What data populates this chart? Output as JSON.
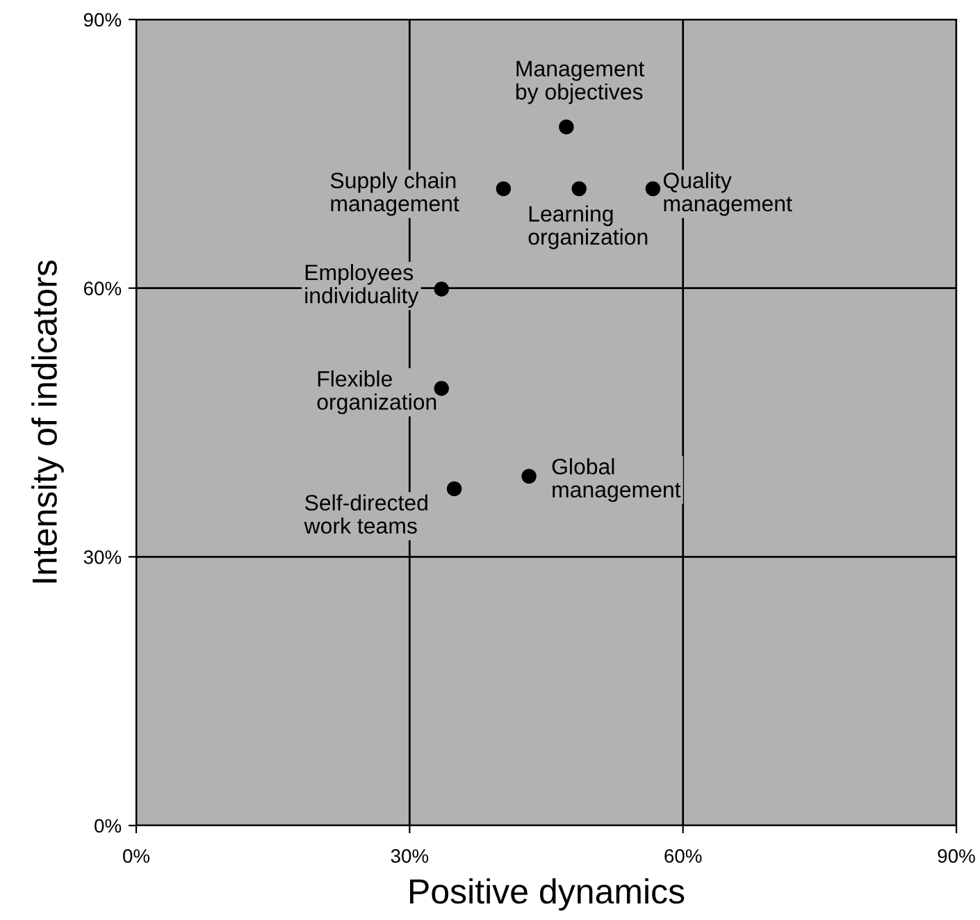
{
  "chart_data": {
    "type": "scatter",
    "xlabel": "Positive dynamics",
    "ylabel": "Intensity of indicators",
    "xlim": [
      0,
      90
    ],
    "ylim": [
      0,
      90
    ],
    "xticks": [
      {
        "value": 0,
        "label": "0%"
      },
      {
        "value": 30,
        "label": "30%"
      },
      {
        "value": 60,
        "label": "60%"
      },
      {
        "value": 90,
        "label": "90%"
      }
    ],
    "yticks": [
      {
        "value": 0,
        "label": "0%"
      },
      {
        "value": 30,
        "label": "30%"
      },
      {
        "value": 60,
        "label": "60%"
      },
      {
        "value": 90,
        "label": "90%"
      }
    ],
    "grid": true,
    "marker": "circle",
    "series": [
      {
        "color": "#000000",
        "x": [
          47.2,
          40.3,
          48.6,
          56.7,
          33.5,
          33.5,
          43.1,
          34.9
        ],
        "values": [
          78.0,
          71.1,
          71.1,
          71.1,
          59.9,
          48.8,
          39.0,
          37.6
        ]
      }
    ],
    "annotations": [
      {
        "text": "Management\nby objectives",
        "x": 47.2,
        "y": 78.0
      },
      {
        "text": "Supply chain\nmanagement",
        "x": 40.3,
        "y": 71.1
      },
      {
        "text": "Learning\norganization",
        "x": 48.6,
        "y": 71.1
      },
      {
        "text": "Quality\nmanagement",
        "x": 56.7,
        "y": 71.1
      },
      {
        "text": "Employees\nindividuality",
        "x": 33.5,
        "y": 59.9
      },
      {
        "text": "Flexible\norganization",
        "x": 33.5,
        "y": 48.8
      },
      {
        "text": "Global\nmanagement",
        "x": 43.1,
        "y": 39.0
      },
      {
        "text": "Self-directed\nwork teams",
        "x": 34.9,
        "y": 37.6
      }
    ]
  }
}
